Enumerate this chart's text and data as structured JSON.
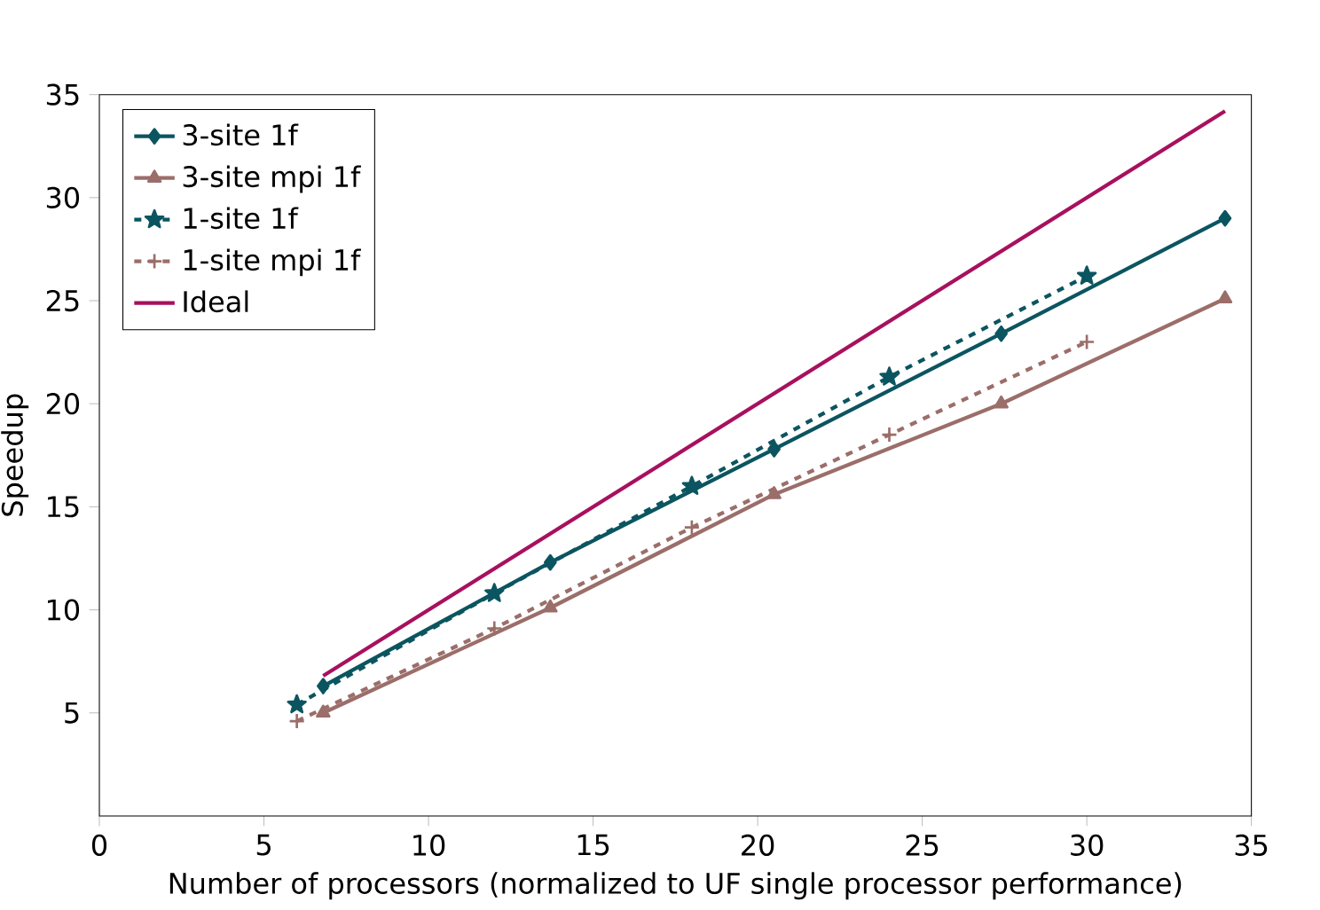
{
  "chart_data": {
    "type": "line",
    "xlabel": "Number of processors (normalized to UF single processor performance)",
    "ylabel": "Speedup",
    "xlim": [
      0,
      35
    ],
    "ylim": [
      0,
      35
    ],
    "xticks": [
      0,
      5,
      10,
      15,
      20,
      25,
      30,
      35
    ],
    "yticks": [
      5,
      10,
      15,
      20,
      25,
      30,
      35
    ],
    "grid": false,
    "legend": "top left",
    "series": [
      {
        "name": "3-site 1f",
        "color": "#0b5560",
        "marker": "diamond",
        "line_style": "solid",
        "x": [
          6.8,
          13.7,
          20.5,
          27.4,
          34.2
        ],
        "values": [
          6.3,
          12.3,
          17.8,
          23.4,
          29.0
        ]
      },
      {
        "name": "3-site mpi 1f",
        "color": "#9b6e6a",
        "marker": "triangle",
        "line_style": "solid",
        "x": [
          6.8,
          13.7,
          20.5,
          27.4,
          34.2
        ],
        "values": [
          5.0,
          10.1,
          15.6,
          20.0,
          25.1
        ]
      },
      {
        "name": "1-site 1f",
        "color": "#0b5560",
        "marker": "star",
        "line_style": "dashed",
        "x": [
          6,
          12,
          18,
          24,
          30
        ],
        "values": [
          5.4,
          10.8,
          16.0,
          21.3,
          26.2
        ]
      },
      {
        "name": "1-site mpi 1f",
        "color": "#9b6e6a",
        "marker": "cross",
        "line_style": "dashed",
        "x": [
          6,
          12,
          18,
          24,
          30
        ],
        "values": [
          4.6,
          9.1,
          14.0,
          18.5,
          23.0
        ]
      },
      {
        "name": "Ideal",
        "color": "#a8105e",
        "marker": "none",
        "line_style": "solid",
        "x": [
          6.8,
          34.2
        ],
        "values": [
          6.8,
          34.2
        ]
      }
    ]
  }
}
